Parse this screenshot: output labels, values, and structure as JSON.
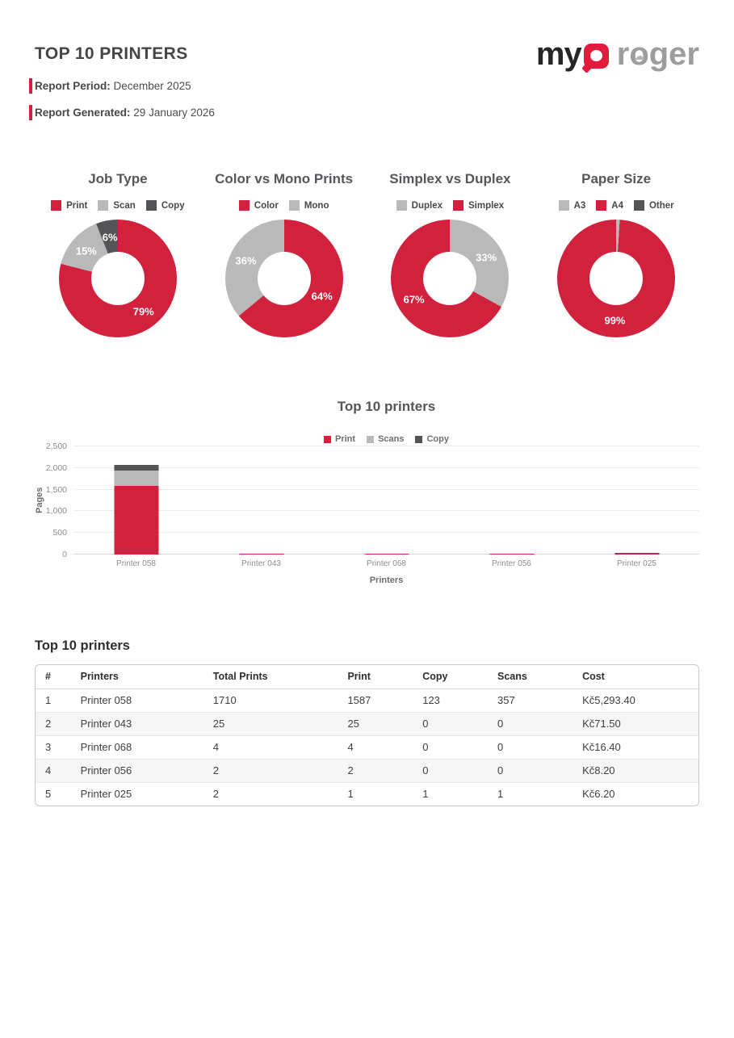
{
  "header": {
    "title": "TOP 10 PRINTERS",
    "report_period_label": "Report Period:",
    "report_period_value": "December 2025",
    "report_generated_label": "Report Generated:",
    "report_generated_value": "29 January 2026",
    "logo": {
      "part_my": "my",
      "part_roger_pre": "r",
      "part_roger_o": "o",
      "part_roger_post": "ger",
      "cloud_icon": "☁"
    }
  },
  "colors": {
    "brand_red": "#d2213c",
    "light_gray": "#b9b9b9",
    "dark_gray": "#545456"
  },
  "chart_data": [
    {
      "type": "pie",
      "variant": "donut",
      "title": "Job Type",
      "legend_position": "top",
      "slices": [
        {
          "label": "Print",
          "pct": 79,
          "color": "#d2213c"
        },
        {
          "label": "Scan",
          "pct": 15,
          "color": "#b9b9b9"
        },
        {
          "label": "Copy",
          "pct": 6,
          "color": "#545456"
        }
      ]
    },
    {
      "type": "pie",
      "variant": "donut",
      "title": "Color vs Mono Prints",
      "legend_position": "top",
      "slices": [
        {
          "label": "Color",
          "pct": 64,
          "color": "#d2213c"
        },
        {
          "label": "Mono",
          "pct": 36,
          "color": "#b9b9b9"
        }
      ]
    },
    {
      "type": "pie",
      "variant": "donut",
      "title": "Simplex vs Duplex",
      "legend_position": "top",
      "slices": [
        {
          "label": "Duplex",
          "pct": 33,
          "color": "#b9b9b9"
        },
        {
          "label": "Simplex",
          "pct": 67,
          "color": "#d2213c"
        }
      ]
    },
    {
      "type": "pie",
      "variant": "donut",
      "title": "Paper Size",
      "legend_position": "top",
      "slices": [
        {
          "label": "A3",
          "pct": 1,
          "color": "#b9b9b9"
        },
        {
          "label": "A4",
          "pct": 99,
          "color": "#d2213c"
        },
        {
          "label": "Other",
          "pct": 0,
          "color": "#545456"
        }
      ]
    },
    {
      "type": "bar",
      "stacked": true,
      "title": "Top 10 printers",
      "xlabel": "Printers",
      "ylabel": "Pages",
      "ylim": [
        0,
        2500
      ],
      "grid": true,
      "legend_position": "top",
      "yticks": [
        "0",
        "500",
        "1,000",
        "1,500",
        "2,000",
        "2,500"
      ],
      "categories": [
        "Printer 058",
        "Printer 043",
        "Printer 068",
        "Printer 056",
        "Printer 025"
      ],
      "series": [
        {
          "name": "Print",
          "color": "#d2213c",
          "values": [
            1587,
            25,
            4,
            2,
            1
          ]
        },
        {
          "name": "Scans",
          "color": "#b9b9b9",
          "values": [
            357,
            0,
            0,
            0,
            1
          ]
        },
        {
          "name": "Copy",
          "color": "#545456",
          "values": [
            123,
            0,
            0,
            0,
            1
          ]
        }
      ]
    }
  ],
  "table": {
    "heading": "Top 10 printers",
    "columns": [
      "#",
      "Printers",
      "Total Prints",
      "Print",
      "Copy",
      "Scans",
      "Cost"
    ],
    "rows": [
      [
        "1",
        "Printer 058",
        "1710",
        "1587",
        "123",
        "357",
        "Kč5,293.40"
      ],
      [
        "2",
        "Printer 043",
        "25",
        "25",
        "0",
        "0",
        "Kč71.50"
      ],
      [
        "3",
        "Printer 068",
        "4",
        "4",
        "0",
        "0",
        "Kč16.40"
      ],
      [
        "4",
        "Printer 056",
        "2",
        "2",
        "0",
        "0",
        "Kč8.20"
      ],
      [
        "5",
        "Printer 025",
        "2",
        "1",
        "1",
        "1",
        "Kč6.20"
      ]
    ]
  }
}
